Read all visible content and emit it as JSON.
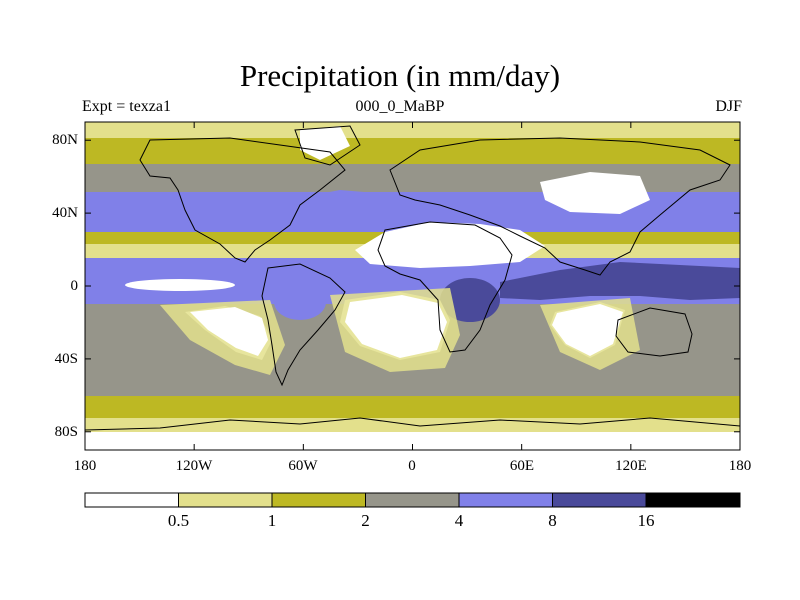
{
  "title": "Precipitation (in mm/day)",
  "subtitle_left": "Expt = texza1",
  "subtitle_center": "000_0_MaBP",
  "subtitle_right": "DJF",
  "x_ticks": [
    "180",
    "120W",
    "60W",
    "0",
    "60E",
    "120E",
    "180"
  ],
  "y_ticks": [
    "80N",
    "40N",
    "0",
    "40S",
    "80S"
  ],
  "colorbar": {
    "levels": [
      "0.5",
      "1",
      "2",
      "4",
      "8",
      "16"
    ],
    "colors": [
      "#ffffff",
      "#e3e08c",
      "#bdb823",
      "#96958a",
      "#8080e8",
      "#4a4a9a",
      "#000000"
    ]
  },
  "chart_data": {
    "type": "heatmap",
    "title": "Precipitation (in mm/day)",
    "variable": "Precipitation",
    "units": "mm/day",
    "experiment": "texza1",
    "time_label": "000_0_MaBP",
    "season": "DJF",
    "lon_range": [
      -180,
      180
    ],
    "lat_range": [
      -90,
      90
    ],
    "contour_levels": [
      0.5,
      1,
      2,
      4,
      8,
      16
    ],
    "colors": [
      "#ffffff",
      "#e3e08c",
      "#bdb823",
      "#96958a",
      "#8080e8",
      "#4a4a9a",
      "#000000"
    ],
    "latitude_band_approx": [
      {
        "lat": 85,
        "precip_class": "0.5-1"
      },
      {
        "lat": 60,
        "precip_class": "2-4"
      },
      {
        "lat": 45,
        "precip_class": "4-8"
      },
      {
        "lat": 25,
        "precip_class": "0-0.5"
      },
      {
        "lat": 5,
        "precip_class": "8-16"
      },
      {
        "lat": -20,
        "precip_class": "0-0.5"
      },
      {
        "lat": -50,
        "precip_class": "2-4"
      },
      {
        "lat": -70,
        "precip_class": "1-2"
      },
      {
        "lat": -85,
        "precip_class": "0-0.5"
      }
    ]
  }
}
